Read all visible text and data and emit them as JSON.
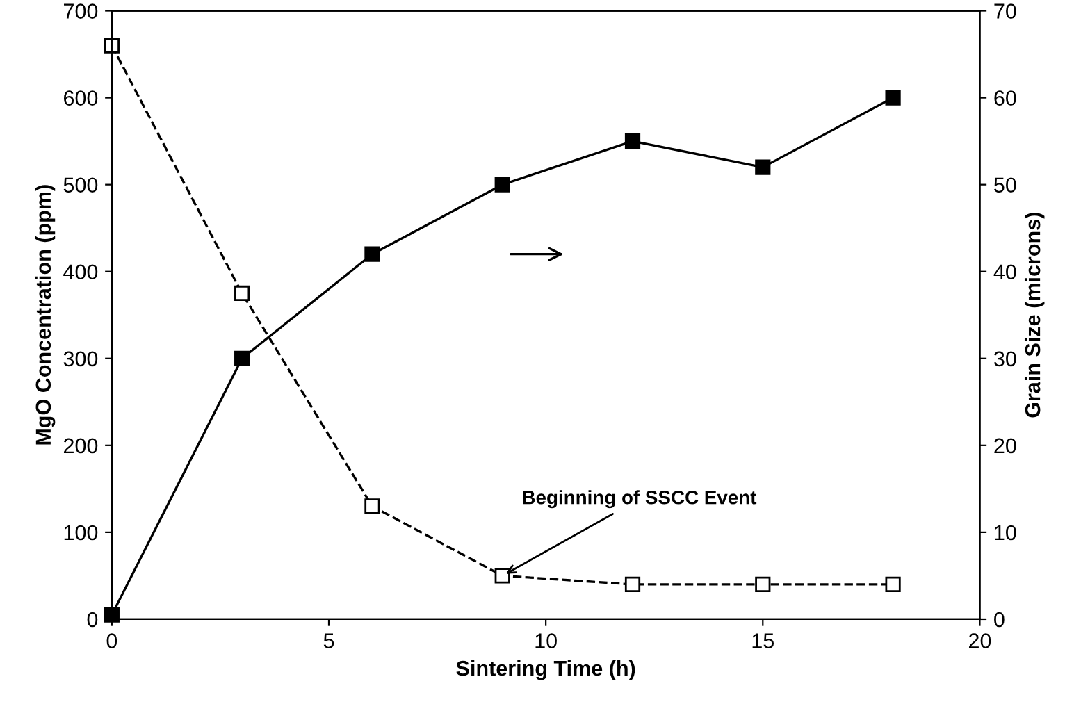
{
  "chart_data": {
    "type": "line",
    "xlabel": "Sintering Time (h)",
    "ylabel": "MgO Concentration (ppm)",
    "y2label": "Grain Size (microns)",
    "x": [
      0,
      3,
      6,
      9,
      12,
      15,
      18
    ],
    "series": [
      {
        "color": "#000000",
        "values": [
          660,
          375,
          130,
          50,
          40,
          40,
          40
        ],
        "marker": "square",
        "line_style": "dashed"
      },
      {
        "color": "#000000",
        "values": [
          0.5,
          30,
          42,
          50,
          55,
          52,
          60
        ],
        "marker": "square",
        "line_style": "solid",
        "axis": "y2"
      }
    ],
    "xlim": [
      0,
      20
    ],
    "xticks": [
      0,
      5,
      10,
      15,
      20
    ],
    "ylim": [
      0,
      700
    ],
    "yticks": [
      0,
      100,
      200,
      300,
      400,
      500,
      600,
      700
    ],
    "y2lim": [
      0,
      70
    ],
    "y2ticks": [
      0,
      10,
      20,
      30,
      40,
      50,
      60,
      70
    ],
    "annotations": [
      {
        "text": "Beginning of SSCC Event",
        "x": 9,
        "y": 50
      }
    ],
    "grid": false,
    "legend": false
  }
}
